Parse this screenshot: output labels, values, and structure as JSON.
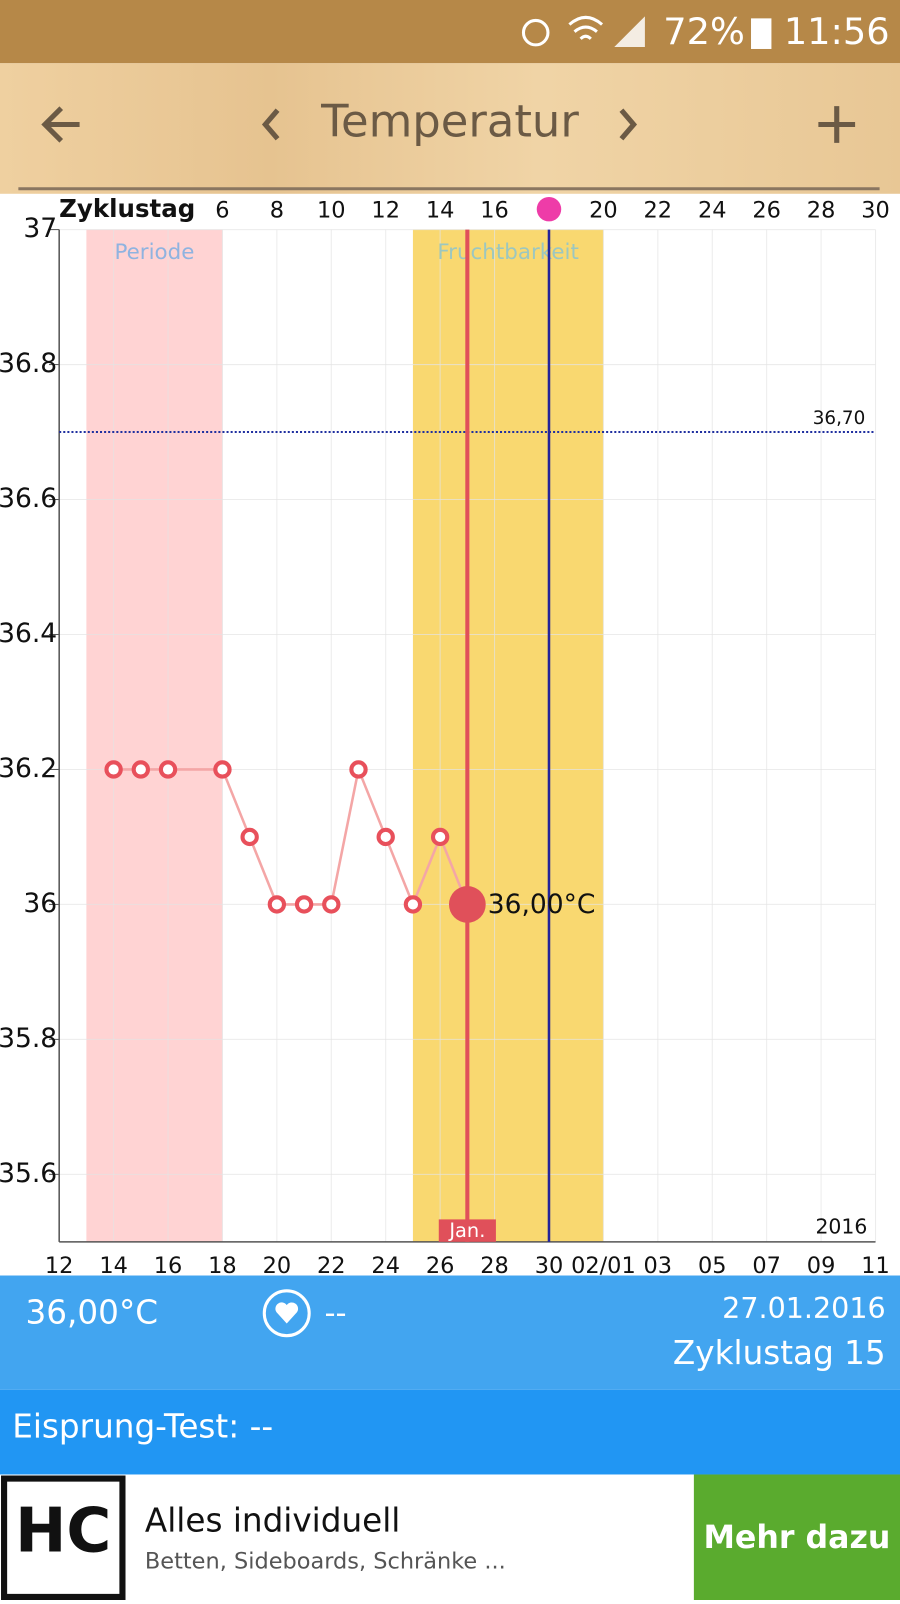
{
  "status_bar": {
    "battery": "72%",
    "time": "11:56"
  },
  "header": {
    "title": "Temperatur"
  },
  "chart_data": {
    "type": "line",
    "top_axis_label": "Zyklustag",
    "top_xticks": [
      6,
      8,
      10,
      12,
      14,
      16,
      20,
      22,
      24,
      26,
      28,
      30
    ],
    "xlim": [
      0,
      30
    ],
    "xticks": [
      {
        "value": 0,
        "label": "12"
      },
      {
        "value": 2,
        "label": "14"
      },
      {
        "value": 4,
        "label": "16"
      },
      {
        "value": 6,
        "label": "18"
      },
      {
        "value": 8,
        "label": "20"
      },
      {
        "value": 10,
        "label": "22"
      },
      {
        "value": 12,
        "label": "24"
      },
      {
        "value": 14,
        "label": "26"
      },
      {
        "value": 16,
        "label": "28"
      },
      {
        "value": 18,
        "label": "30"
      },
      {
        "value": 20,
        "label": "02/01"
      },
      {
        "value": 22,
        "label": "03"
      },
      {
        "value": 24,
        "label": "05"
      },
      {
        "value": 26,
        "label": "07"
      },
      {
        "value": 28,
        "label": "09"
      },
      {
        "value": 30,
        "label": "11"
      }
    ],
    "ylim": [
      35.5,
      37
    ],
    "yticks": [
      35.6,
      35.8,
      36,
      36.2,
      36.4,
      36.6,
      36.8,
      37
    ],
    "grid": true,
    "x": [
      2,
      3,
      4,
      6,
      7,
      8,
      9,
      10,
      11,
      12,
      13,
      14,
      15
    ],
    "values": [
      36.2,
      36.2,
      36.2,
      36.2,
      36.1,
      36.0,
      36.0,
      36.0,
      36.2,
      36.1,
      36.0,
      36.1,
      36.0
    ],
    "color": "#e8505b",
    "line_color": "#f4a6a6",
    "bands": [
      {
        "label": "Periode",
        "from": 1,
        "to": 6,
        "color": "#ffd3d3",
        "text_color": "#8fb3e0"
      },
      {
        "label": "Fruchtbarkeit",
        "from": 13,
        "to": 20,
        "color": "#f9d870",
        "text_color": "#9cc7c0"
      }
    ],
    "threshold": {
      "value": 36.7,
      "label": "36,70",
      "color": "#2030a0"
    },
    "ovulation_x": 18,
    "ovulation_color": "#24249a",
    "selected": {
      "x": 15,
      "label": "36,00°C",
      "month": "Jan.",
      "color": "#e0505a"
    },
    "year": "2016"
  },
  "info": {
    "temperature": "36,00°C",
    "mood": "--",
    "date": "27.01.2016",
    "cycle_day": "Zyklustag 15"
  },
  "ovulation_test": "Eisprung-Test: --",
  "ad": {
    "logo": "HC",
    "title": "Alles individuell",
    "subtitle": "Betten, Sideboards, Schränke ...",
    "button": "Mehr dazu"
  }
}
